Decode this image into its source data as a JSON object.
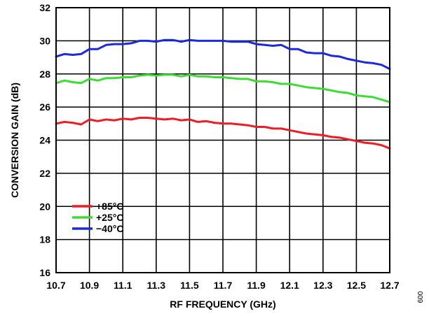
{
  "chart_data": {
    "type": "line",
    "title": "",
    "xlabel": "RF FREQUENCY (GHz)",
    "ylabel": "CONVERSION GAIN (dB)",
    "xlim": [
      10.7,
      12.7
    ],
    "ylim": [
      16,
      32
    ],
    "grid": true,
    "legend_position": "bottom-left",
    "x_ticks": [
      "10.7",
      "10.9",
      "11.1",
      "11.3",
      "11.5",
      "11.7",
      "11.9",
      "12.1",
      "12.3",
      "12.5",
      "12.7"
    ],
    "y_ticks": [
      "16",
      "18",
      "20",
      "22",
      "24",
      "26",
      "28",
      "30",
      "32"
    ],
    "x": [
      10.7,
      10.75,
      10.8,
      10.85,
      10.9,
      10.95,
      11.0,
      11.05,
      11.1,
      11.15,
      11.2,
      11.25,
      11.3,
      11.35,
      11.4,
      11.45,
      11.5,
      11.55,
      11.6,
      11.65,
      11.7,
      11.75,
      11.8,
      11.85,
      11.9,
      11.95,
      12.0,
      12.05,
      12.1,
      12.15,
      12.2,
      12.25,
      12.3,
      12.35,
      12.4,
      12.45,
      12.5,
      12.55,
      12.6,
      12.65,
      12.7
    ],
    "series": [
      {
        "name": "+85°C",
        "color": "#ee1c24",
        "values": [
          25.0,
          25.1,
          25.05,
          24.95,
          25.25,
          25.15,
          25.25,
          25.2,
          25.3,
          25.25,
          25.35,
          25.35,
          25.3,
          25.25,
          25.3,
          25.2,
          25.25,
          25.1,
          25.15,
          25.05,
          25.0,
          25.0,
          24.95,
          24.9,
          24.8,
          24.8,
          24.7,
          24.7,
          24.6,
          24.5,
          24.4,
          24.35,
          24.3,
          24.2,
          24.15,
          24.05,
          23.95,
          23.85,
          23.8,
          23.7,
          23.5
        ]
      },
      {
        "name": "+25°C",
        "color": "#3ddc34",
        "values": [
          27.45,
          27.6,
          27.5,
          27.45,
          27.7,
          27.6,
          27.75,
          27.75,
          27.8,
          27.8,
          27.9,
          27.95,
          27.9,
          27.95,
          27.95,
          27.85,
          27.95,
          27.85,
          27.85,
          27.8,
          27.8,
          27.75,
          27.7,
          27.7,
          27.55,
          27.55,
          27.5,
          27.4,
          27.4,
          27.3,
          27.2,
          27.15,
          27.1,
          27.0,
          26.9,
          26.85,
          26.7,
          26.65,
          26.6,
          26.45,
          26.3
        ]
      },
      {
        "name": "−40°C",
        "color": "#1b2adb",
        "values": [
          29.05,
          29.2,
          29.15,
          29.2,
          29.5,
          29.5,
          29.75,
          29.8,
          29.8,
          29.85,
          30.0,
          30.0,
          29.95,
          30.05,
          30.05,
          29.95,
          30.05,
          30.0,
          30.0,
          30.0,
          30.0,
          29.95,
          29.95,
          29.95,
          29.8,
          29.75,
          29.7,
          29.75,
          29.5,
          29.5,
          29.3,
          29.25,
          29.25,
          29.1,
          29.05,
          28.9,
          28.8,
          28.7,
          28.65,
          28.55,
          28.3
        ]
      }
    ]
  },
  "figure_id": "009"
}
